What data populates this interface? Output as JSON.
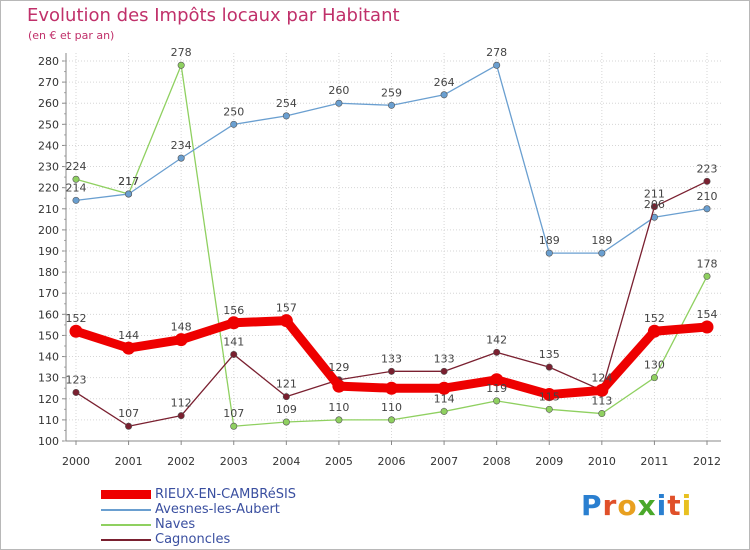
{
  "title": "Evolution des Impôts locaux par Habitant",
  "subtitle": "(en € et par an)",
  "logo": {
    "letters": [
      "P",
      "r",
      "o",
      "x",
      "i",
      "t",
      "i"
    ],
    "colors": [
      "#2a7fd0",
      "#e0502a",
      "#e8a020",
      "#4aa82a",
      "#2a7fd0",
      "#e0502a",
      "#e8c020"
    ]
  },
  "chart_data": {
    "type": "line",
    "x": [
      "2000",
      "2001",
      "2002",
      "2003",
      "2004",
      "2005",
      "2006",
      "2007",
      "2008",
      "2009",
      "2010",
      "2011",
      "2012"
    ],
    "ylim": [
      100,
      280
    ],
    "yticks": [
      "100",
      "110",
      "120",
      "130",
      "140",
      "150",
      "160",
      "170",
      "180",
      "190",
      "200",
      "210",
      "220",
      "230",
      "240",
      "250",
      "260",
      "270",
      "280"
    ],
    "grid": true,
    "legend_position": "bottom-left",
    "series": [
      {
        "name": "RIEUX-EN-CAMBRéSIS",
        "color": "#ee0000",
        "values": [
          152,
          144,
          148,
          156,
          157,
          126,
          125,
          125,
          129,
          122,
          124,
          152,
          154
        ],
        "labels": [
          "152",
          "144",
          "148",
          "156",
          "157",
          "",
          "",
          "",
          "",
          "",
          "",
          "152",
          "154"
        ]
      },
      {
        "name": "Avesnes-les-Aubert",
        "color": "#6a9fd0",
        "values": [
          214,
          217,
          234,
          250,
          254,
          260,
          259,
          264,
          278,
          189,
          189,
          206,
          210
        ],
        "labels": [
          "214",
          "217",
          "234",
          "250",
          "254",
          "260",
          "259",
          "264",
          "278",
          "189",
          "189",
          "206",
          "210"
        ]
      },
      {
        "name": "Naves",
        "color": "#8fd060",
        "values": [
          224,
          217,
          278,
          107,
          109,
          110,
          110,
          114,
          119,
          115,
          113,
          130,
          178
        ],
        "labels": [
          "224",
          "217",
          "278",
          "107",
          "109",
          "110",
          "110",
          "114",
          "119",
          "115",
          "113",
          "130",
          "178"
        ]
      },
      {
        "name": "Cagnoncles",
        "color": "#7a2030",
        "values": [
          123,
          107,
          112,
          141,
          121,
          129,
          133,
          133,
          142,
          135,
          124,
          211,
          223
        ],
        "labels": [
          "123",
          "107",
          "112",
          "141",
          "121",
          "129",
          "133",
          "133",
          "142",
          "135",
          "124",
          "211",
          "223"
        ]
      }
    ]
  }
}
